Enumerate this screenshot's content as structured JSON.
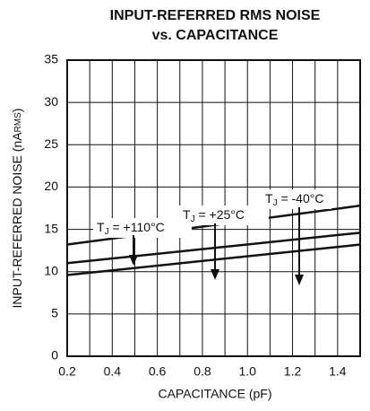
{
  "chart_data": {
    "type": "line",
    "title": [
      "INPUT-REFERRED RMS NOISE",
      "vs. CAPACITANCE"
    ],
    "xlabel": "CAPACITANCE (pF)",
    "ylabel": {
      "text": "INPUT-REFERRED NOISE (nA",
      "sub": "RMS",
      "end": ")"
    },
    "xlim": [
      0.2,
      1.5
    ],
    "ylim": [
      0,
      35
    ],
    "xticks": [
      0.2,
      0.4,
      0.6,
      0.8,
      {
        "value": 1,
        "label": "1.0"
      },
      1.2,
      1.4
    ],
    "yticks": [
      0,
      5,
      10,
      15,
      20,
      25,
      30,
      35
    ],
    "x_grid": [
      0.3,
      0.5,
      0.7,
      0.9,
      1.1,
      1.3
    ],
    "grid": true,
    "x": [
      0.2,
      1.5
    ],
    "series": [
      {
        "name": {
          "t": "T",
          "sub": "J",
          "rest": " = +110°C"
        },
        "color": "#111",
        "values": [
          13.2,
          17.8
        ]
      },
      {
        "name": {
          "t": "T",
          "sub": "J",
          "rest": " = +25°C"
        },
        "color": "#111",
        "values": [
          11.0,
          14.6
        ]
      },
      {
        "name": {
          "t": "T",
          "sub": "J",
          "rest": " = -40°C"
        },
        "color": "#111",
        "values": [
          9.6,
          13.2
        ]
      }
    ]
  }
}
